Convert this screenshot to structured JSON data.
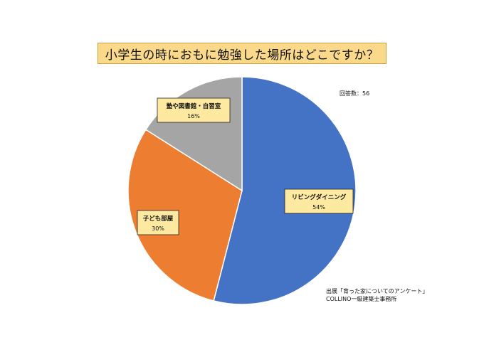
{
  "title": "小学生の時におもに勉強した場所はどこですか？",
  "respondents": "回答数：56",
  "source": {
    "line1": "出展「育った家についてのアンケート」",
    "line2": "COLLINO一級建築士事務所"
  },
  "chart_data": {
    "type": "pie",
    "slices": [
      {
        "label": "リビングダイニング",
        "value": 54,
        "value_label": "54%",
        "color": "#4472c4"
      },
      {
        "label": "子ども部屋",
        "value": 30,
        "value_label": "30%",
        "color": "#ed7d31"
      },
      {
        "label": "塾や図書館・自習室",
        "value": 16,
        "value_label": "16%",
        "color": "#a5a5a5"
      }
    ],
    "start": "12 o'clock",
    "direction": "clockwise",
    "label_box_color": "#fde9a0"
  }
}
